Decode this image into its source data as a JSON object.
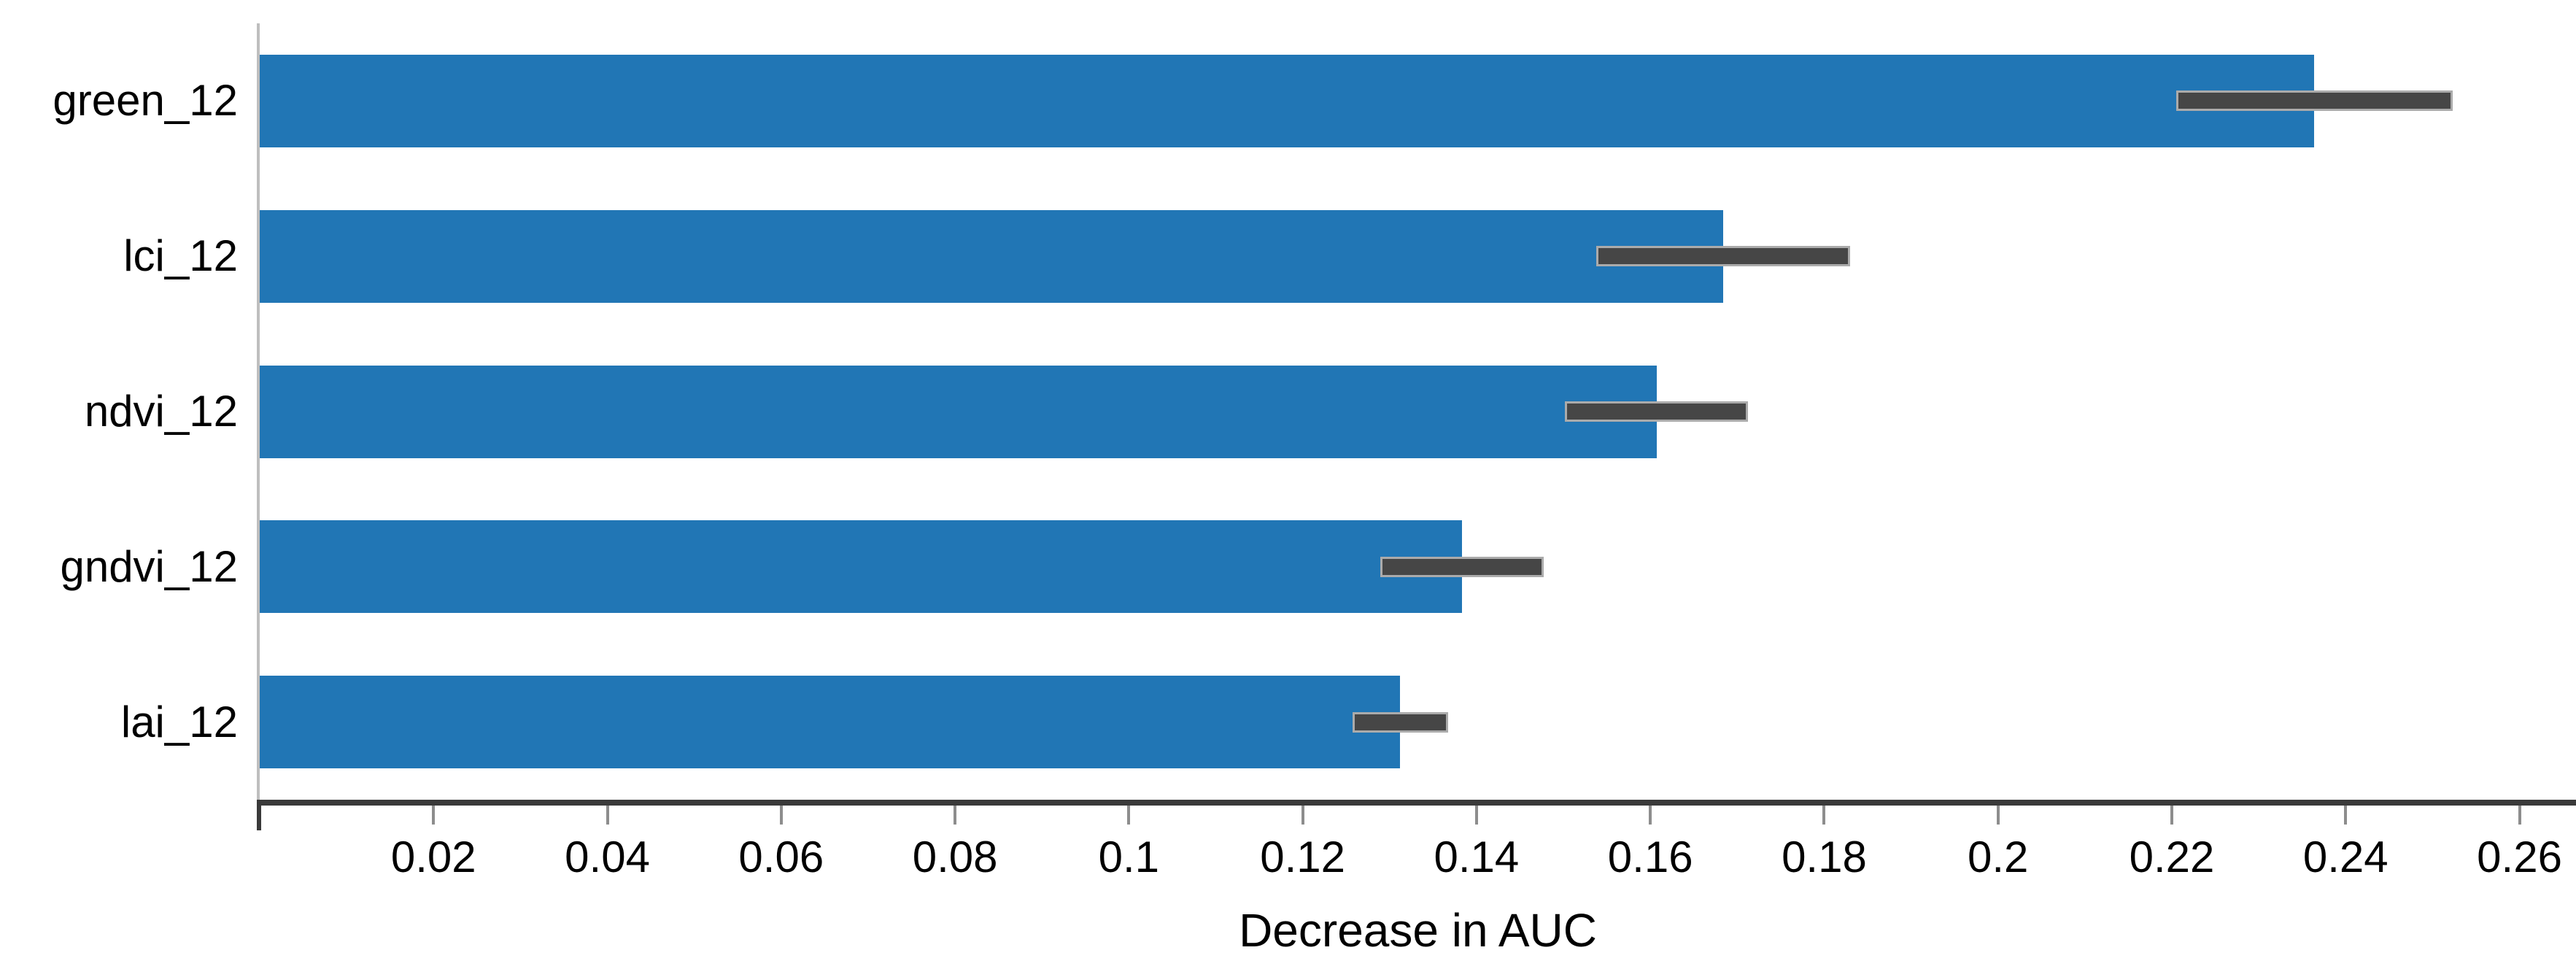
{
  "chart_data": {
    "type": "bar",
    "orientation": "horizontal",
    "title": "",
    "xlabel": "Decrease in AUC",
    "ylabel": "",
    "categories": [
      "green_12",
      "lci_12",
      "ndvi_12",
      "gndvi_12",
      "lai_12"
    ],
    "values": [
      0.2364,
      0.1684,
      0.1607,
      0.1383,
      0.1312
    ],
    "error_bars": {
      "low": [
        0.2205,
        0.1538,
        0.1502,
        0.1289,
        0.1257
      ],
      "high": [
        0.2523,
        0.183,
        0.1712,
        0.1477,
        0.1367
      ]
    },
    "xlim": [
      0,
      0.2665
    ],
    "x_ticks": [
      0.02,
      0.04,
      0.06,
      0.08,
      0.1,
      0.12,
      0.14,
      0.16,
      0.18,
      0.2,
      0.22,
      0.24,
      0.26
    ],
    "x_tick_labels": [
      "0.02",
      "0.04",
      "0.06",
      "0.08",
      "0.1",
      "0.12",
      "0.14",
      "0.16",
      "0.18",
      "0.2",
      "0.22",
      "0.24",
      "0.26"
    ],
    "grid": false,
    "legend": "none",
    "colors": {
      "bar_fill": "#2176b5",
      "error_fill": "#464646",
      "error_edge": "#ababab",
      "bottom_axis": "#3a3a3a",
      "left_axis": "#bebebe",
      "tick_mark": "#8d8d8d",
      "text": "#000000"
    }
  }
}
